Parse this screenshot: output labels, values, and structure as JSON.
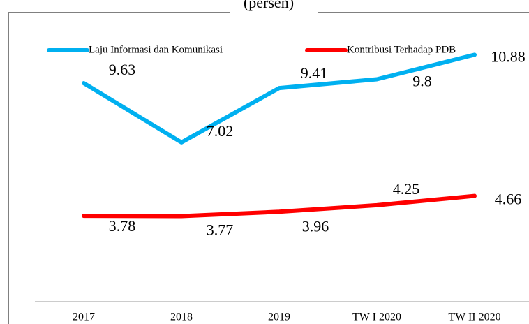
{
  "chart_data": {
    "type": "line",
    "title": "(persen)",
    "categories": [
      "2017",
      "2018",
      "2019",
      "TW I 2020",
      "TW II 2020"
    ],
    "series": [
      {
        "name": "Laju Informasi dan Komunikasi",
        "color": "#00b0f0",
        "values": [
          9.63,
          7.02,
          9.41,
          9.8,
          10.88
        ]
      },
      {
        "name": "Kontribusi Terhadap PDB",
        "color": "#ff0000",
        "values": [
          3.78,
          3.77,
          3.96,
          4.25,
          4.66
        ]
      }
    ],
    "ylim": [
      0,
      12
    ],
    "legend": "top"
  }
}
